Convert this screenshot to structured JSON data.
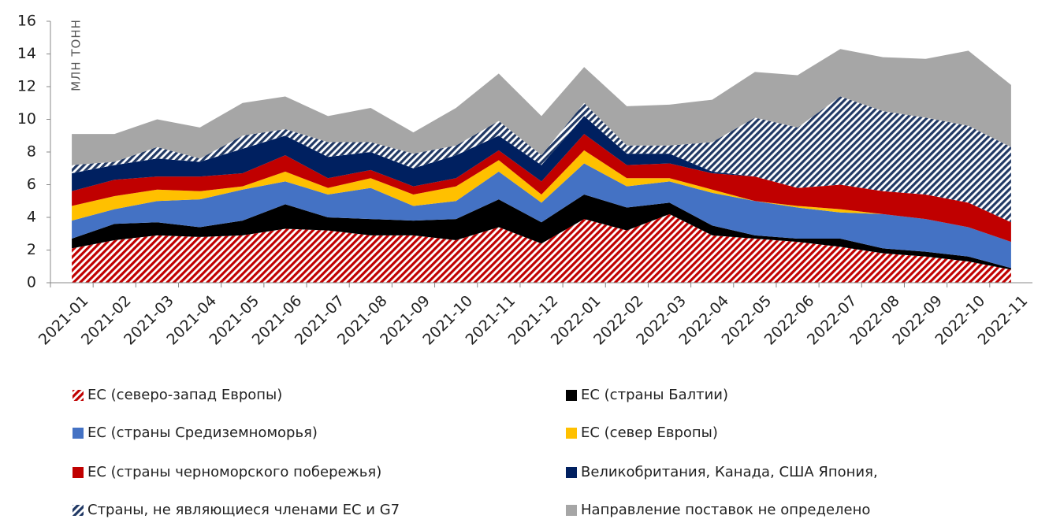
{
  "chart_data": {
    "type": "stacked_area",
    "y_label": "МЛН ТОНН",
    "categories": [
      "2021-01",
      "2021-02",
      "2021-03",
      "2021-04",
      "2021-05",
      "2021-06",
      "2021-07",
      "2021-08",
      "2021-09",
      "2021-10",
      "2021-11",
      "2021-12",
      "2022-01",
      "2022-02",
      "2022-03",
      "2022-04",
      "2022-05",
      "2022-06",
      "2022-07",
      "2022-08",
      "2022-09",
      "2022-10",
      "2022-11"
    ],
    "series": [
      {
        "name": "ЕС (северо-запад Европы)",
        "color": "#c00000",
        "hatch": true,
        "values": [
          2.1,
          2.6,
          2.9,
          2.8,
          2.9,
          3.3,
          3.2,
          2.9,
          2.9,
          2.6,
          3.4,
          2.4,
          3.9,
          3.2,
          4.2,
          2.9,
          2.7,
          2.5,
          2.2,
          1.8,
          1.6,
          1.3,
          0.8
        ]
      },
      {
        "name": "ЕС (страны Балтии)",
        "color": "#000000",
        "values": [
          0.6,
          1.0,
          0.8,
          0.6,
          0.9,
          1.5,
          0.8,
          1.0,
          0.9,
          1.3,
          1.7,
          1.3,
          1.5,
          1.4,
          0.7,
          0.6,
          0.2,
          0.2,
          0.5,
          0.3,
          0.3,
          0.3,
          0.1
        ]
      },
      {
        "name": "ЕС (страны Средиземноморья)",
        "color": "#4472c4",
        "values": [
          1.1,
          0.9,
          1.3,
          1.7,
          1.9,
          1.4,
          1.4,
          1.9,
          0.9,
          1.1,
          1.7,
          1.2,
          1.9,
          1.3,
          1.3,
          2.0,
          2.1,
          1.9,
          1.6,
          2.1,
          2.0,
          1.8,
          1.6
        ]
      },
      {
        "name": "ЕС (север Европы)",
        "color": "#ffc000",
        "values": [
          0.9,
          0.8,
          0.7,
          0.5,
          0.2,
          0.6,
          0.4,
          0.6,
          0.7,
          0.9,
          0.7,
          0.5,
          0.8,
          0.5,
          0.2,
          0.2,
          0,
          0.1,
          0.2,
          0,
          0,
          0,
          0
        ]
      },
      {
        "name": "ЕС (страны черноморского побережья)",
        "color": "#c00000",
        "values": [
          0.9,
          1.0,
          0.8,
          0.9,
          0.8,
          1.0,
          0.6,
          0.5,
          0.5,
          0.5,
          0.6,
          0.8,
          1.0,
          0.8,
          0.9,
          1.0,
          1.5,
          1.1,
          1.5,
          1.4,
          1.5,
          1.5,
          1.2
        ]
      },
      {
        "name": "Великобритания, Канада, США Япония,",
        "color": "#002060",
        "values": [
          1.1,
          0.9,
          1.1,
          0.9,
          1.5,
          1.2,
          1.3,
          1.1,
          1.1,
          1.4,
          0.9,
          1.0,
          1.1,
          0.7,
          0.6,
          0.1,
          0,
          0,
          0,
          0,
          0,
          0,
          0
        ]
      },
      {
        "name": "Страны, не являющиеся членами ЕС и G7",
        "color": "#203864",
        "hatch": true,
        "values": [
          0.5,
          0.2,
          0.7,
          0.2,
          0.8,
          0.4,
          0.9,
          0.6,
          0.9,
          0.6,
          0.9,
          0.6,
          0.8,
          0.5,
          0.5,
          1.8,
          3.6,
          3.7,
          5.4,
          4.9,
          4.7,
          4.7,
          4.6
        ]
      },
      {
        "name": "Направление поставок не определено",
        "color": "#a6a6a6",
        "values": [
          1.9,
          1.7,
          1.7,
          1.9,
          2.0,
          2.0,
          1.6,
          2.1,
          1.3,
          2.3,
          2.9,
          2.4,
          2.2,
          2.4,
          2.5,
          2.6,
          2.8,
          3.2,
          2.9,
          3.3,
          3.6,
          4.6,
          3.8
        ]
      }
    ],
    "ylim": [
      0,
      16
    ],
    "yticks": [
      0,
      2,
      4,
      6,
      8,
      10,
      12,
      14,
      16
    ]
  }
}
